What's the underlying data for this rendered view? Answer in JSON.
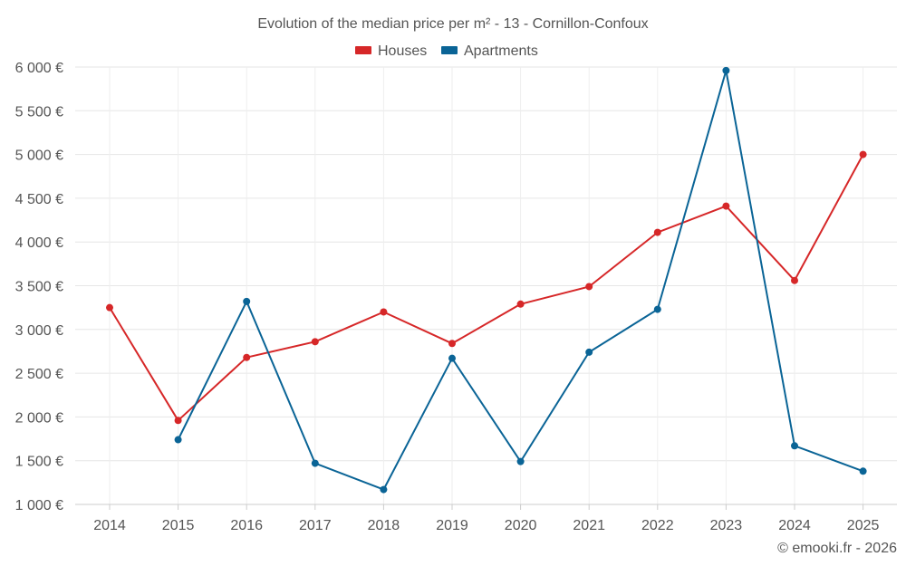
{
  "chart_data": {
    "type": "line",
    "title": "Evolution of the median price per m² - 13 - Cornillon-Confoux",
    "categories": [
      "2014",
      "2015",
      "2016",
      "2017",
      "2018",
      "2019",
      "2020",
      "2021",
      "2022",
      "2023",
      "2024",
      "2025"
    ],
    "series": [
      {
        "name": "Houses",
        "color": "#d62728",
        "values": [
          3250,
          1960,
          2680,
          2860,
          3200,
          2840,
          3290,
          3490,
          4110,
          4410,
          3560,
          5000
        ]
      },
      {
        "name": "Apartments",
        "color": "#0a6496",
        "values": [
          null,
          1740,
          3320,
          1470,
          1170,
          2670,
          1490,
          2740,
          3230,
          5960,
          1670,
          1380
        ]
      }
    ],
    "ylim": [
      1000,
      6000
    ],
    "yticks": [
      1000,
      1500,
      2000,
      2500,
      3000,
      3500,
      4000,
      4500,
      5000,
      5500,
      6000
    ],
    "ytick_labels": [
      "1 000 €",
      "1 500 €",
      "2 000 €",
      "2 500 €",
      "3 000 €",
      "3 500 €",
      "4 000 €",
      "4 500 €",
      "5 000 €",
      "5 500 €",
      "6 000 €"
    ],
    "xlabel": "",
    "ylabel": "",
    "grid": true,
    "legend_position": "top-center",
    "credit": "© emooki.fr - 2026"
  }
}
